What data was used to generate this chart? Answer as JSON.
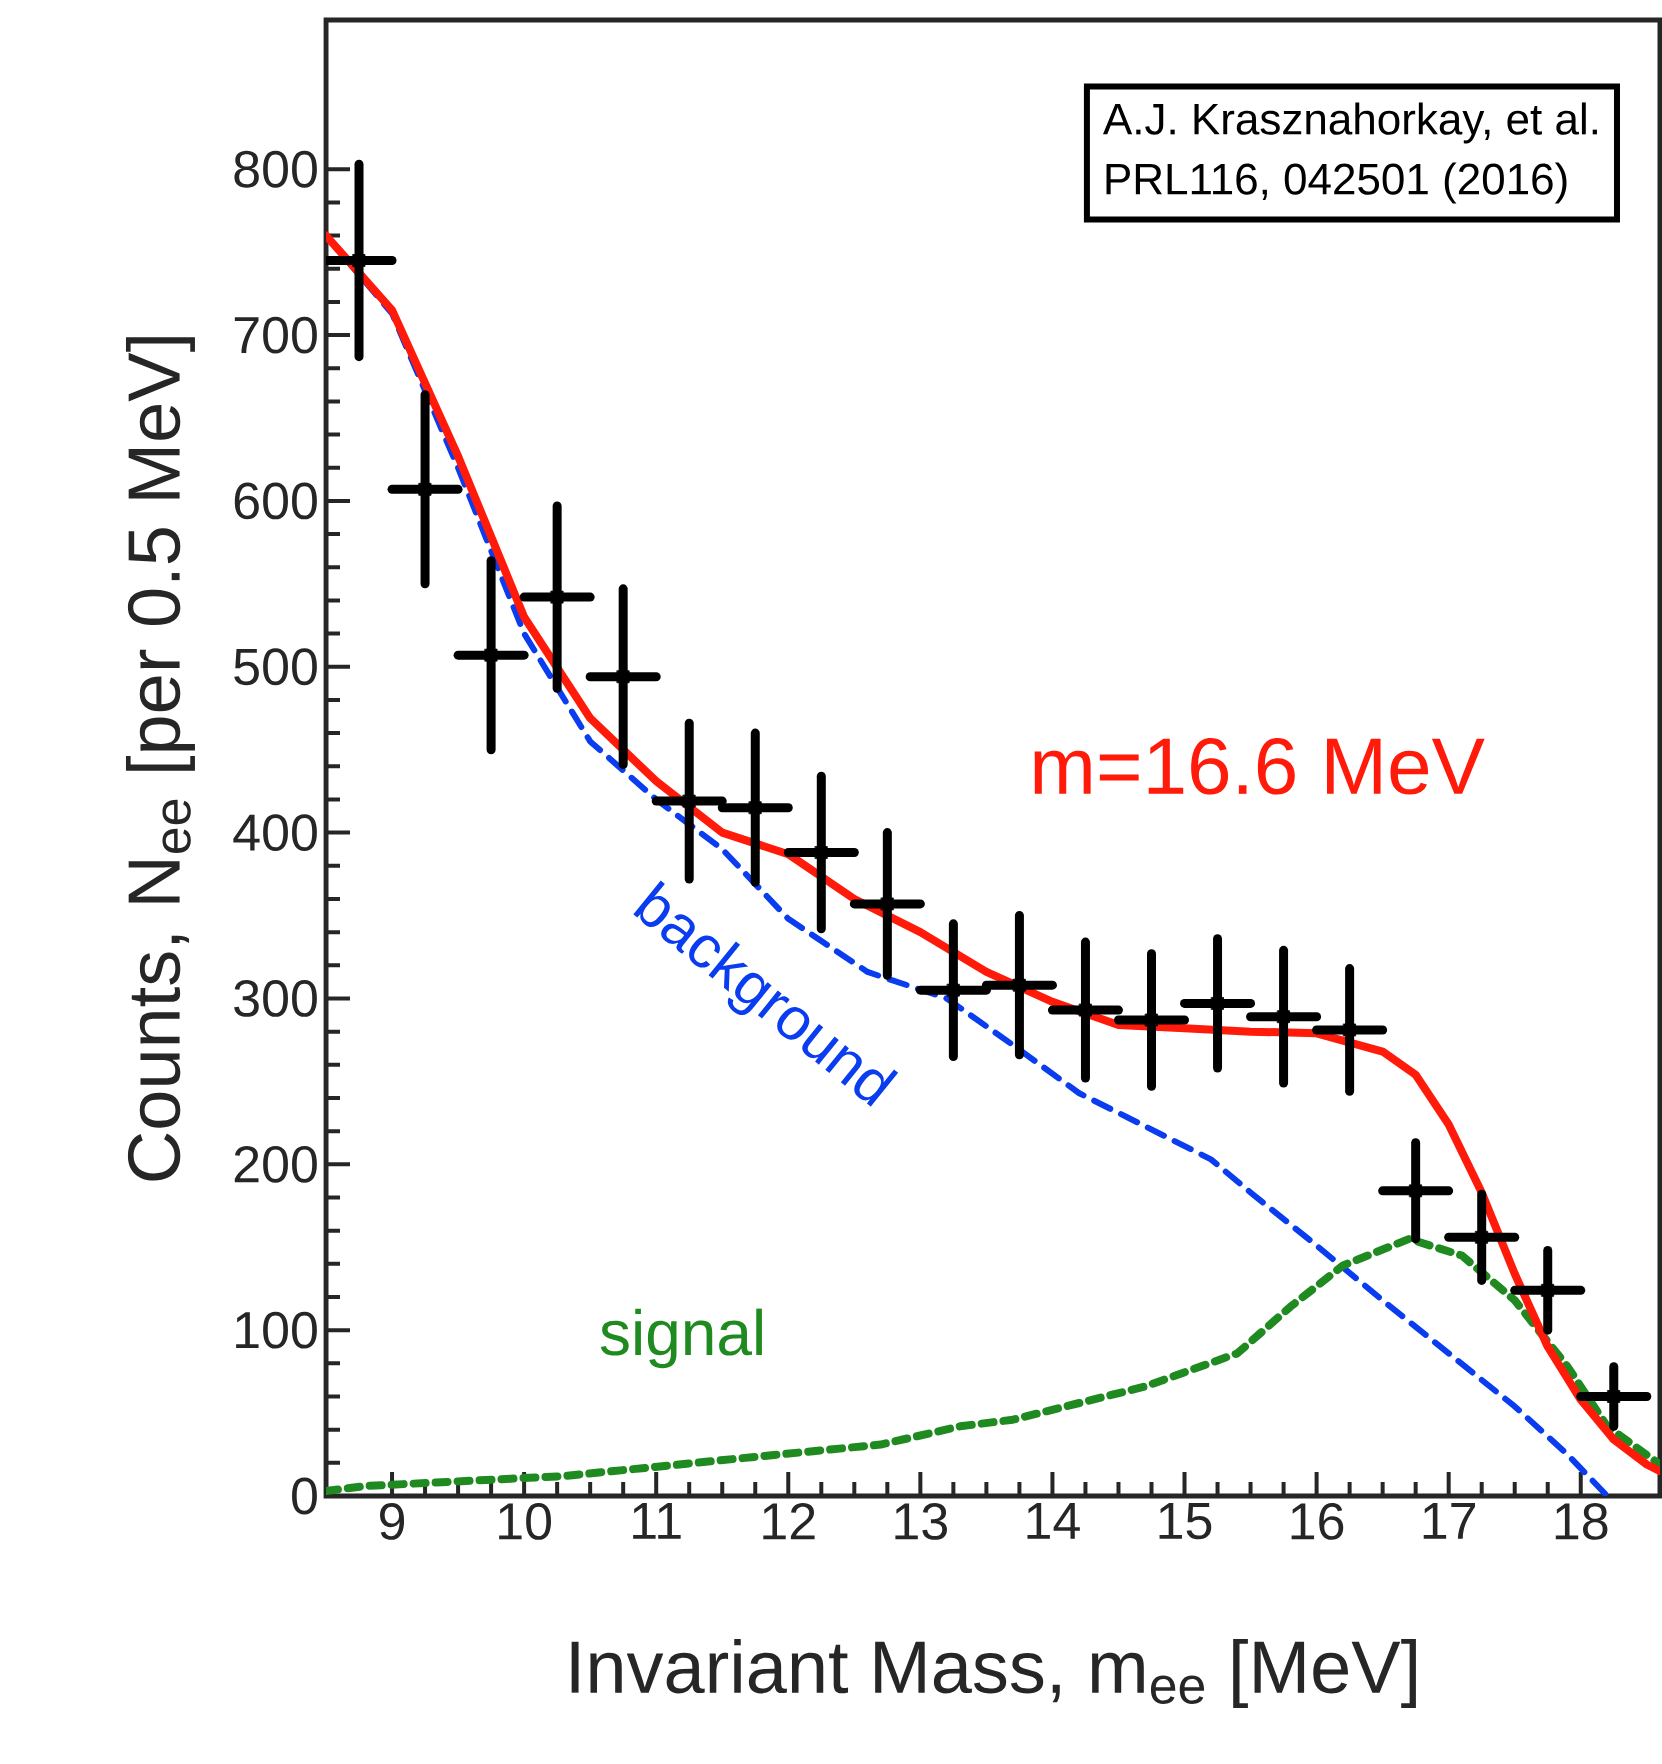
{
  "chart_data": {
    "type": "line",
    "xlabel": "Invariant Mass, m$_{ee}$ [MeV]",
    "ylabel": "Counts, N$_{ee}$ [per 0.5 MeV]",
    "xlim": [
      8.5,
      18.6
    ],
    "ylim": [
      0,
      890
    ],
    "xticks": [
      9,
      10,
      11,
      12,
      13,
      14,
      15,
      16,
      17,
      18
    ],
    "yticks": [
      0,
      100,
      200,
      300,
      400,
      500,
      600,
      700,
      800
    ],
    "annotations": [
      "A.J. Krasznahorkay, et al.",
      "PRL116, 042501 (2016)"
    ],
    "series": [
      {
        "name": "background",
        "color": "#0a3cf0",
        "line_style": "dashed",
        "marker": "none",
        "x": [
          8.5,
          9.0,
          9.5,
          10.0,
          10.5,
          11.0,
          11.5,
          12.0,
          12.6,
          13.2,
          13.7,
          14.2,
          14.7,
          15.2,
          15.5,
          16.0,
          16.5,
          17.0,
          17.5,
          17.9,
          18.2
        ],
        "values": [
          760,
          713,
          620,
          520,
          455,
          420,
          390,
          348,
          316,
          300,
          272,
          243,
          223,
          203,
          183,
          151,
          118,
          86,
          54,
          25,
          0
        ]
      },
      {
        "name": "signal",
        "color": "#1f8a1f",
        "line_style": "dotted",
        "marker": "none",
        "x": [
          8.5,
          8.8,
          10.3,
          11.8,
          12.7,
          13.3,
          13.7,
          14.7,
          15.4,
          15.8,
          16.2,
          16.7,
          17.1,
          17.5,
          17.9,
          18.2,
          18.6
        ],
        "values": [
          3,
          6,
          12,
          24,
          31,
          42,
          46,
          66,
          86,
          114,
          139,
          155,
          145,
          118,
          78,
          42,
          19
        ]
      },
      {
        "name": "m=16.6 MeV",
        "color": "#ff1a0a",
        "line_style": "solid",
        "marker": "none",
        "x": [
          8.5,
          9.0,
          9.5,
          10.0,
          10.5,
          11.0,
          11.5,
          12.0,
          12.5,
          13.0,
          13.5,
          14.0,
          14.5,
          15.0,
          15.5,
          16.0,
          16.5,
          16.75,
          17.0,
          17.25,
          17.5,
          17.75,
          18.0,
          18.25,
          18.5,
          18.6
        ],
        "values": [
          760,
          715,
          627,
          530,
          469,
          431,
          400,
          387,
          360,
          340,
          316,
          298,
          284,
          282,
          280,
          279,
          268,
          254,
          224,
          183,
          134,
          90,
          58,
          34,
          19,
          15
        ]
      },
      {
        "type": "scatter",
        "color": "#000000",
        "marker": "square",
        "x": [
          8.75,
          9.25,
          9.75,
          10.25,
          10.75,
          11.25,
          11.75,
          12.25,
          12.75,
          13.25,
          13.75,
          14.25,
          14.75,
          15.25,
          15.75,
          16.25,
          16.75,
          17.25,
          17.75,
          18.25
        ],
        "values": [
          745,
          607,
          507,
          542,
          494,
          419,
          415,
          388,
          357,
          305,
          308,
          293,
          287,
          297,
          289,
          281,
          184,
          156,
          124,
          60
        ],
        "errors": [
          58,
          57,
          57,
          55,
          53,
          47,
          45,
          46,
          43,
          40,
          42,
          41,
          40,
          39,
          40,
          37,
          29,
          26,
          24,
          18
        ],
        "xerrors": [
          0.25,
          0.25,
          0.25,
          0.25,
          0.25,
          0.25,
          0.25,
          0.25,
          0.25,
          0.25,
          0.25,
          0.25,
          0.25,
          0.25,
          0.25,
          0.25,
          0.25,
          0.25,
          0.25,
          0.25
        ]
      }
    ]
  }
}
